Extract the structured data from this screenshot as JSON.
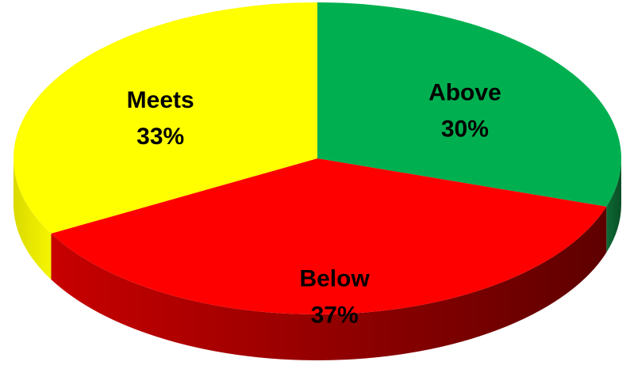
{
  "chart_data": {
    "type": "pie",
    "style": "3d",
    "title": "",
    "slices": [
      {
        "label": "Above",
        "value": 30,
        "value_label": "30%",
        "color": "#00B050"
      },
      {
        "label": "Below",
        "value": 37,
        "value_label": "37%",
        "color": "#FF0000"
      },
      {
        "label": "Meets",
        "value": 33,
        "value_label": "33%",
        "color": "#FFFF00"
      }
    ],
    "start_angle": "12 o'clock",
    "direction": "clockwise",
    "legend": "none"
  }
}
